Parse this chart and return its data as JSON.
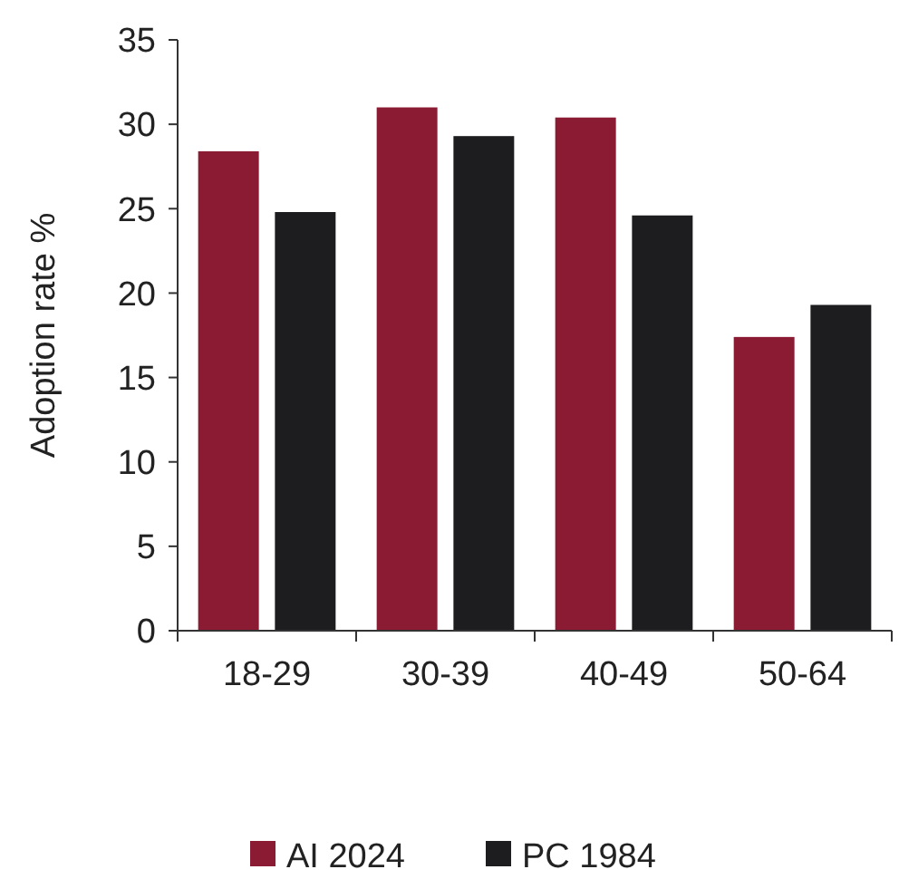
{
  "chart_data": {
    "type": "bar",
    "ylabel": "Adoption rate %",
    "categories": [
      "18-29",
      "30-39",
      "40-49",
      "50-64"
    ],
    "series": [
      {
        "name": "AI 2024",
        "color": "#8b1a33",
        "values": [
          28.4,
          31.0,
          30.4,
          17.4
        ]
      },
      {
        "name": "PC 1984",
        "color": "#1d1d1f",
        "values": [
          24.8,
          29.3,
          24.6,
          19.3
        ]
      }
    ],
    "ylim": [
      0,
      35
    ],
    "yticks": [
      0,
      5,
      10,
      15,
      20,
      25,
      30,
      35
    ],
    "grid": false,
    "legend": "bottom"
  }
}
